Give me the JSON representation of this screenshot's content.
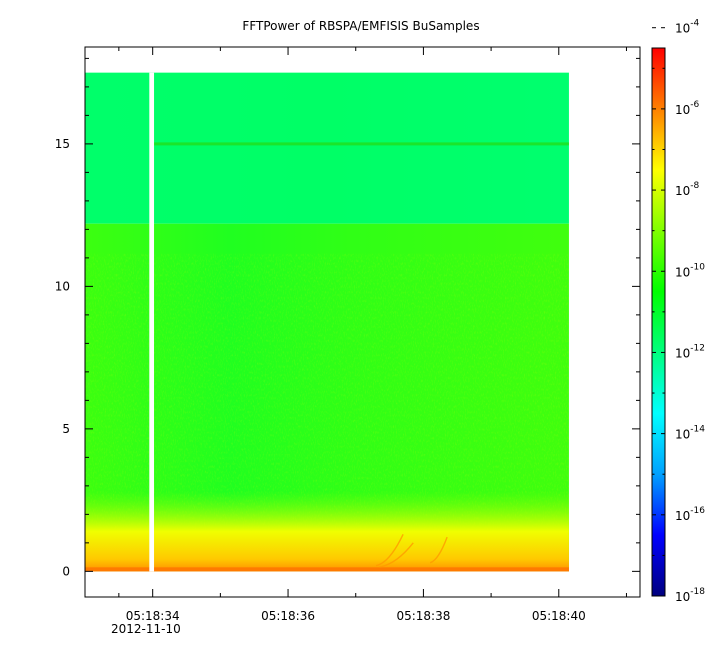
{
  "chart_data": {
    "type": "heatmap",
    "title": "FFTPower of RBSPA/EMFISIS  BuSamples",
    "x_axis": {
      "ticks": [
        {
          "label": "05:18:34",
          "t": 34
        },
        {
          "label": "05:18:36",
          "t": 36
        },
        {
          "label": "05:18:38",
          "t": 38
        },
        {
          "label": "05:18:40",
          "t": 40
        }
      ],
      "minor_ticks": [
        33.5,
        35,
        37,
        39,
        41
      ],
      "date_label": "2012-11-10",
      "range_seconds": [
        33.0,
        41.2
      ]
    },
    "y_axis": {
      "ticks": [
        {
          "label": "0",
          "value": 0
        },
        {
          "label": "5",
          "value": 5
        },
        {
          "label": "10",
          "value": 10
        },
        {
          "label": "15",
          "value": 15
        }
      ],
      "range": [
        -0.9,
        18.4
      ]
    },
    "data_extent": {
      "t_start": 33.0,
      "t_end": 40.15,
      "f_min": 0,
      "f_max": 17.5
    },
    "data_gap": {
      "t_start": 33.95,
      "t_end": 34.02
    },
    "colorbar": {
      "scale": "log",
      "range_exp": [
        -18,
        -4.5
      ],
      "ticks": [
        {
          "base": "10",
          "exp": "-4",
          "value_exp": -4
        },
        {
          "base": "10",
          "exp": "-6",
          "value_exp": -6
        },
        {
          "base": "10",
          "exp": "-8",
          "value_exp": -8
        },
        {
          "base": "10",
          "exp": "-10",
          "value_exp": -10
        },
        {
          "base": "10",
          "exp": "-12",
          "value_exp": -12
        },
        {
          "base": "10",
          "exp": "-14",
          "value_exp": -14
        },
        {
          "base": "10",
          "exp": "-16",
          "value_exp": -16
        },
        {
          "base": "10",
          "exp": "-18",
          "value_exp": -18
        }
      ],
      "colors": [
        "#00007f",
        "#0000ff",
        "#00a0ff",
        "#00ffff",
        "#00ff80",
        "#00ff00",
        "#80ff00",
        "#ffff00",
        "#ff8000",
        "#ff0000"
      ]
    },
    "features": {
      "band_change_freq": 12.2,
      "upper_band_level_exp": -12.3,
      "lower_band_level_exp": -10.6,
      "narrowband_line_freq": 15.0,
      "low_freq_enhancement_top": 0.6
    }
  }
}
